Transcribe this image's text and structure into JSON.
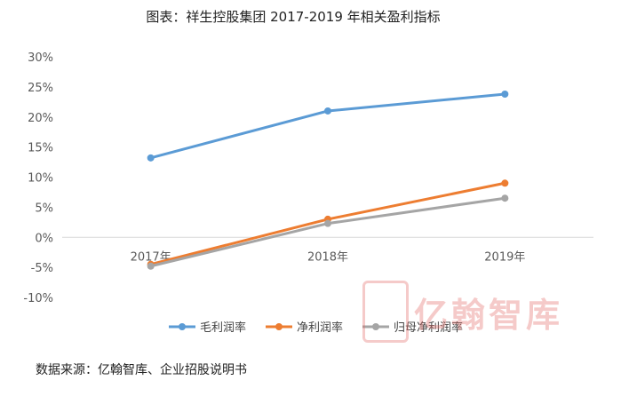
{
  "chart_data": {
    "type": "line",
    "title": "图表：祥生控股集团 2017-2019 年相关盈利指标",
    "categories": [
      "2017年",
      "2018年",
      "2019年"
    ],
    "series": [
      {
        "name": "毛利润率",
        "values": [
          13.2,
          21.0,
          23.8
        ],
        "color": "#5b9bd5"
      },
      {
        "name": "净利润率",
        "values": [
          -4.5,
          3.0,
          9.0
        ],
        "color": "#ed7d31"
      },
      {
        "name": "归母净利润率",
        "values": [
          -4.8,
          2.3,
          6.5
        ],
        "color": "#a5a5a5"
      }
    ],
    "ylim": [
      -10,
      30
    ],
    "yticks": [
      "30%",
      "25%",
      "20%",
      "15%",
      "10%",
      "5%",
      "0%",
      "-5%",
      "-10%"
    ],
    "ytick_values": [
      30,
      25,
      20,
      15,
      10,
      5,
      0,
      -5,
      -10
    ],
    "xlabel": "",
    "ylabel": "",
    "legend_position": "bottom",
    "grid": false
  },
  "source_note": "数据来源：亿翰智库、企业招股说明书",
  "watermark": {
    "text": "亿翰智库",
    "icon": "yihan-logo-icon"
  }
}
